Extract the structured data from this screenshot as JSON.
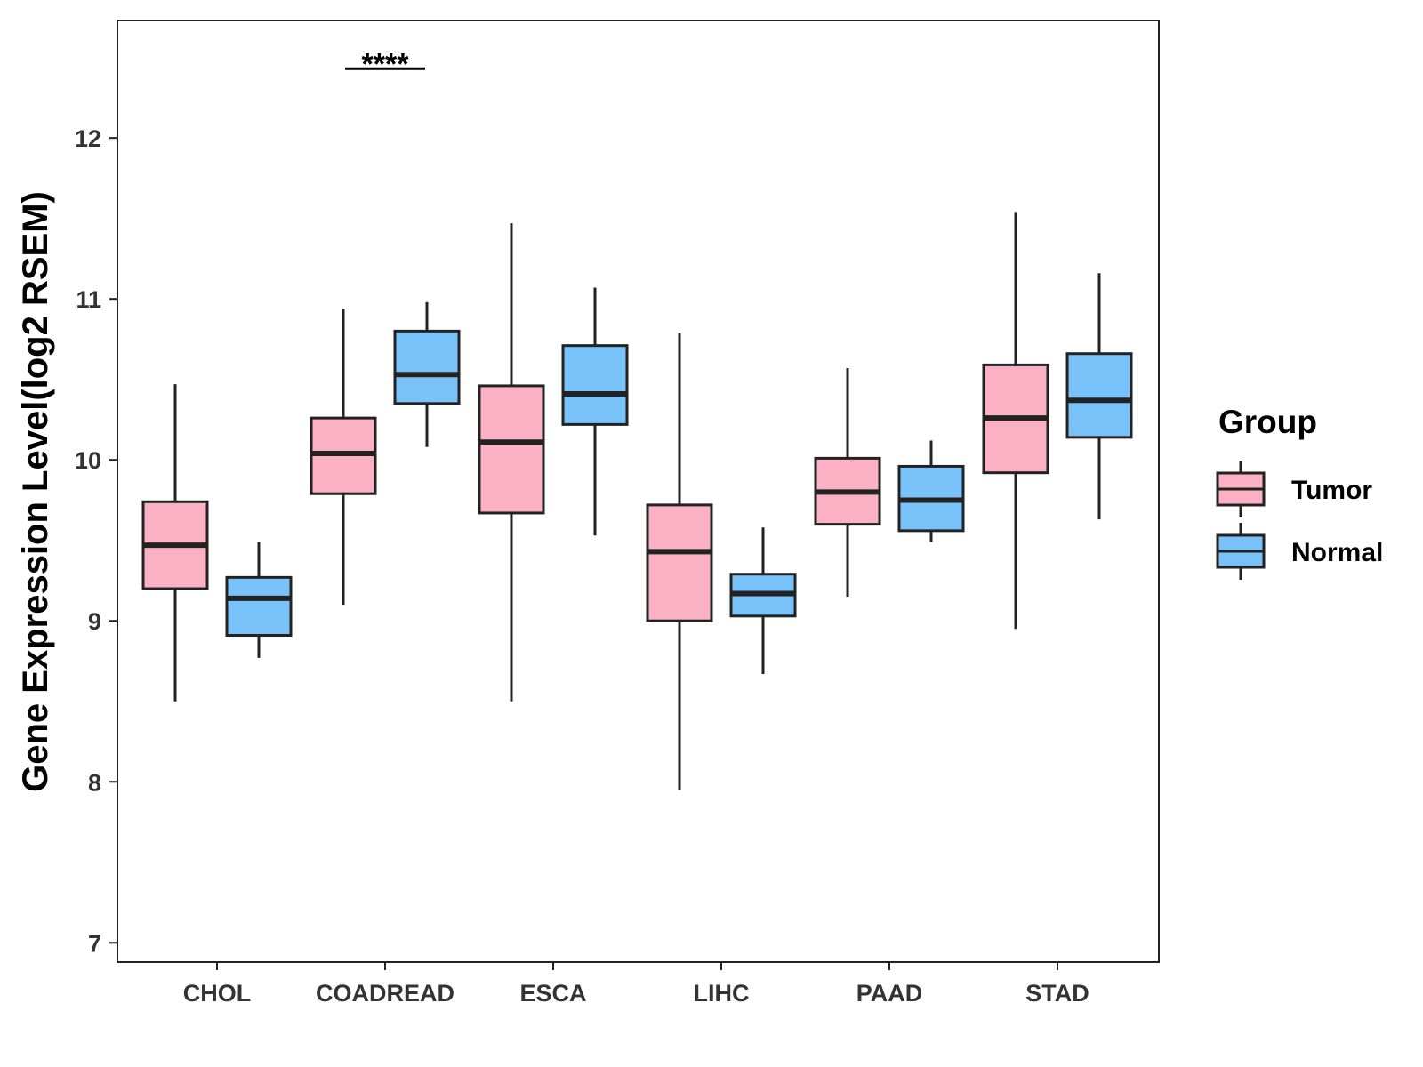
{
  "chart_data": {
    "type": "boxplot",
    "title": "",
    "xlabel": "",
    "ylabel": "Gene Expression Level(log2 RSEM)",
    "ylim": [
      6.88,
      12.73
    ],
    "yticks": [
      7,
      8,
      9,
      10,
      11,
      12
    ],
    "grid": false,
    "categories": [
      "CHOL",
      "COADREAD",
      "ESCA",
      "LIHC",
      "PAAD",
      "STAD"
    ],
    "legend": {
      "title": "Group",
      "position": "right",
      "items": [
        {
          "label": "Tumor",
          "color": "#FBB1C3"
        },
        {
          "label": "Normal",
          "color": "#79C2F9"
        }
      ]
    },
    "series": [
      {
        "name": "Tumor",
        "color": "#FBB1C3",
        "boxes": [
          {
            "category": "CHOL",
            "min": 8.5,
            "q1": 9.2,
            "median": 9.47,
            "q3": 9.74,
            "max": 10.47
          },
          {
            "category": "COADREAD",
            "min": 9.1,
            "q1": 9.79,
            "median": 10.04,
            "q3": 10.26,
            "max": 10.94
          },
          {
            "category": "ESCA",
            "min": 8.5,
            "q1": 9.67,
            "median": 10.11,
            "q3": 10.46,
            "max": 11.47
          },
          {
            "category": "LIHC",
            "min": 7.95,
            "q1": 9.0,
            "median": 9.43,
            "q3": 9.72,
            "max": 10.79
          },
          {
            "category": "PAAD",
            "min": 9.15,
            "q1": 9.6,
            "median": 9.8,
            "q3": 10.01,
            "max": 10.57
          },
          {
            "category": "STAD",
            "min": 8.95,
            "q1": 9.92,
            "median": 10.26,
            "q3": 10.59,
            "max": 11.54
          }
        ]
      },
      {
        "name": "Normal",
        "color": "#79C2F9",
        "boxes": [
          {
            "category": "CHOL",
            "min": 8.77,
            "q1": 8.91,
            "median": 9.14,
            "q3": 9.27,
            "max": 9.49
          },
          {
            "category": "COADREAD",
            "min": 10.08,
            "q1": 10.35,
            "median": 10.53,
            "q3": 10.8,
            "max": 10.98
          },
          {
            "category": "ESCA",
            "min": 9.53,
            "q1": 10.22,
            "median": 10.41,
            "q3": 10.71,
            "max": 11.07
          },
          {
            "category": "LIHC",
            "min": 8.67,
            "q1": 9.03,
            "median": 9.17,
            "q3": 9.29,
            "max": 9.58
          },
          {
            "category": "PAAD",
            "min": 9.49,
            "q1": 9.56,
            "median": 9.75,
            "q3": 9.96,
            "max": 10.12
          },
          {
            "category": "STAD",
            "min": 9.63,
            "q1": 10.14,
            "median": 10.37,
            "q3": 10.66,
            "max": 11.16
          }
        ]
      }
    ],
    "annotations": [
      {
        "category": "COADREAD",
        "text": "****",
        "y": 12.43
      }
    ]
  }
}
